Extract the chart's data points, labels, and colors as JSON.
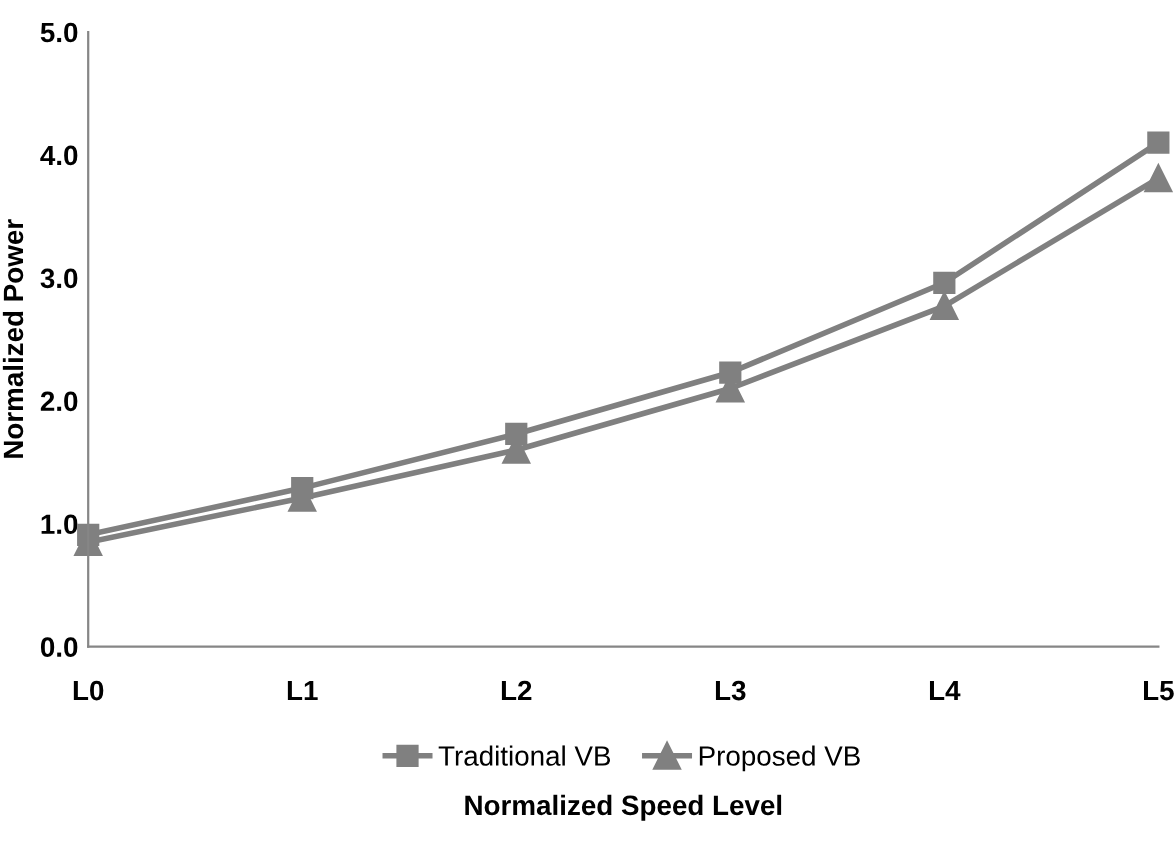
{
  "chart_data": {
    "type": "line",
    "xlabel": "Normalized Speed Level",
    "ylabel": "Normalized Power",
    "categories": [
      "L0",
      "L1",
      "L2",
      "L3",
      "L4",
      "L5"
    ],
    "series": [
      {
        "name": "Traditional VB",
        "color": "#808080",
        "marker": "square",
        "values": [
          0.91,
          1.29,
          1.73,
          2.23,
          2.96,
          4.1
        ]
      },
      {
        "name": "Proposed VB",
        "color": "#808080",
        "marker": "triangle",
        "values": [
          0.85,
          1.21,
          1.6,
          2.1,
          2.77,
          3.81
        ]
      }
    ],
    "ylim": [
      0,
      5
    ],
    "yticks": [
      {
        "value": 0,
        "label": "0.0"
      },
      {
        "value": 1,
        "label": "1.0"
      },
      {
        "value": 2,
        "label": "2.0"
      },
      {
        "value": 3,
        "label": "3.0"
      },
      {
        "value": 4,
        "label": "4.0"
      },
      {
        "value": 5,
        "label": "5.0"
      }
    ],
    "grid": false,
    "legend": "bottom",
    "line_style": "solid"
  }
}
